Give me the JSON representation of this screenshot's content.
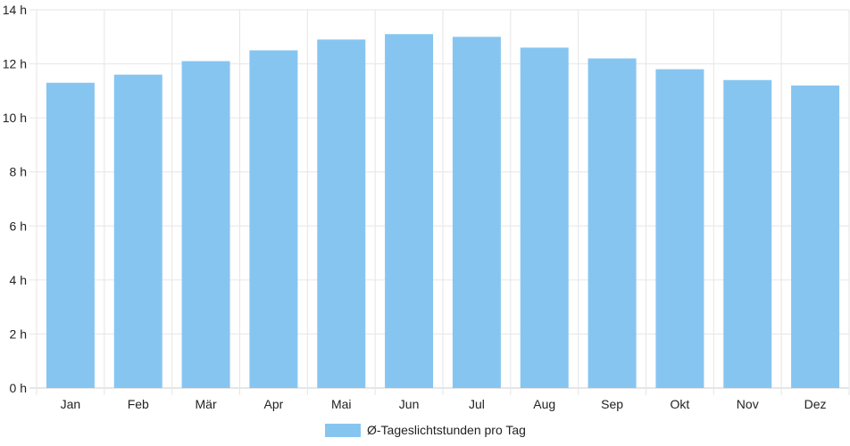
{
  "chart_data": {
    "type": "bar",
    "categories": [
      "Jan",
      "Feb",
      "Mär",
      "Apr",
      "Mai",
      "Jun",
      "Jul",
      "Aug",
      "Sep",
      "Okt",
      "Nov",
      "Dez"
    ],
    "series": [
      {
        "name": "Ø-Tageslichtstunden pro Tag",
        "values": [
          11.3,
          11.6,
          12.1,
          12.5,
          12.9,
          13.1,
          13.0,
          12.6,
          12.2,
          11.8,
          11.4,
          11.2
        ]
      }
    ],
    "y_ticks": [
      "0 h",
      "2 h",
      "4 h",
      "6 h",
      "8 h",
      "10 h",
      "12 h",
      "14 h"
    ],
    "ylim": [
      0,
      14
    ],
    "grid": true,
    "legend": "bottom-center",
    "colors": {
      "bar": "#87c5f1",
      "grid": "#e6e6e6",
      "axis": "#cccccc"
    }
  }
}
